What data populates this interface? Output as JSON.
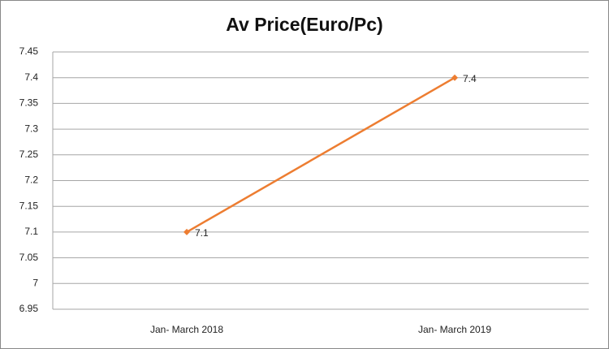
{
  "chart_data": {
    "type": "line",
    "title": "Av Price(Euro/Pc)",
    "categories": [
      "Jan- March 2018",
      "Jan- March 2019"
    ],
    "series": [
      {
        "color": "#ed7d31",
        "values": [
          7.1,
          7.4
        ]
      }
    ],
    "ylim": [
      6.95,
      7.45
    ],
    "yticks": [
      6.95,
      7,
      7.05,
      7.1,
      7.15,
      7.2,
      7.25,
      7.3,
      7.35,
      7.4,
      7.45
    ],
    "grid": true
  }
}
